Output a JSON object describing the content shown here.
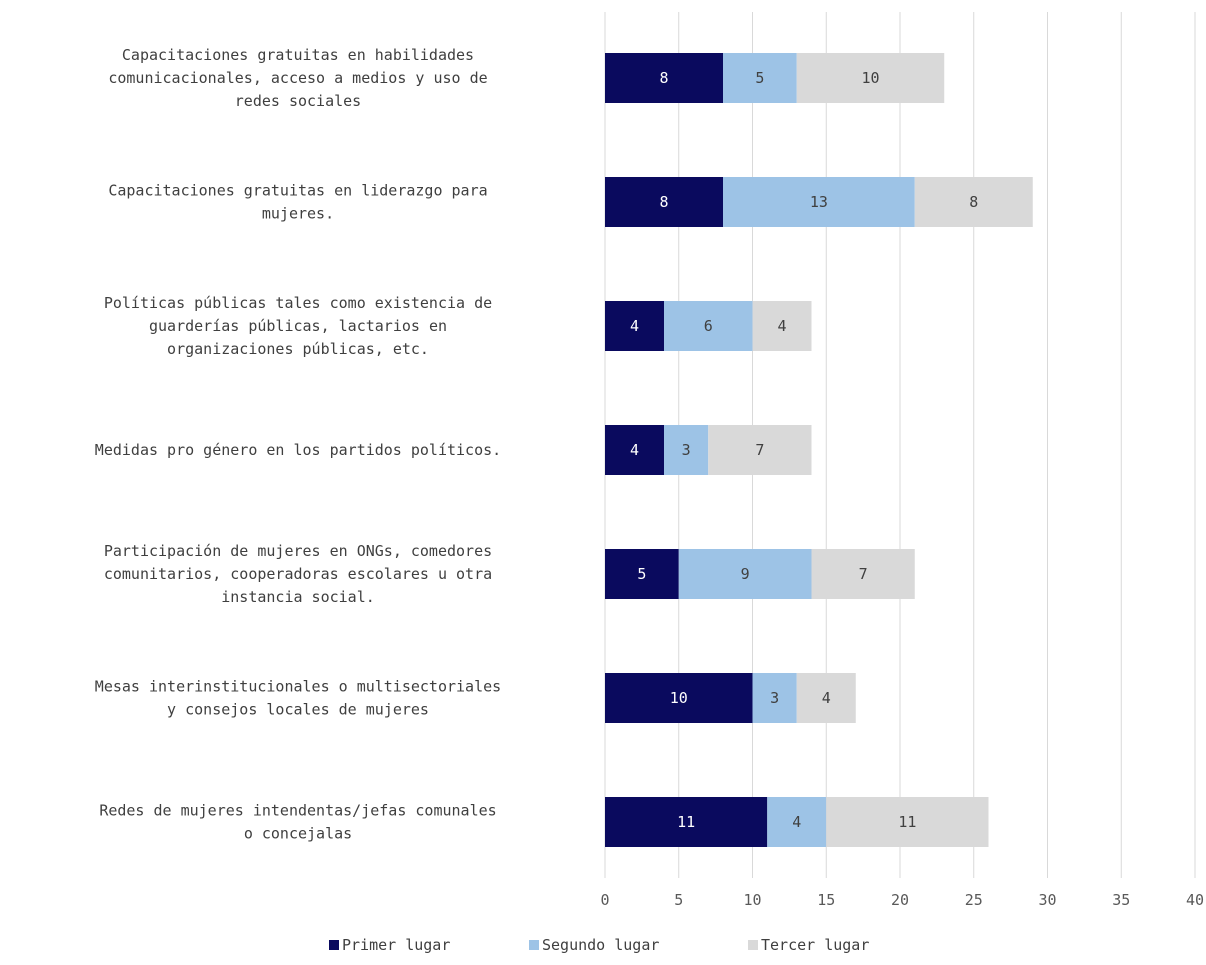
{
  "chart_data": {
    "type": "bar",
    "orientation": "horizontal",
    "stacked": true,
    "categories": [
      [
        "Capacitaciones gratuitas en habilidades",
        "comunicacionales, acceso a medios y uso de",
        "redes sociales"
      ],
      [
        "Capacitaciones gratuitas en liderazgo para",
        "mujeres."
      ],
      [
        "Políticas públicas tales como existencia de",
        "guarderías públicas, lactarios en",
        "organizaciones públicas, etc."
      ],
      [
        "Medidas pro género en los partidos políticos."
      ],
      [
        "Participación de mujeres en ONGs, comedores",
        "comunitarios, cooperadoras escolares u otra",
        "instancia social."
      ],
      [
        "Mesas interinstitucionales o multisectoriales",
        "y consejos locales de mujeres"
      ],
      [
        "Redes de mujeres intendentas/jefas comunales",
        "o concejalas"
      ]
    ],
    "series": [
      {
        "name": "Primer lugar",
        "color": "#0a0a5e",
        "label_color": "#ffffff",
        "values": [
          8,
          8,
          4,
          4,
          5,
          10,
          11
        ]
      },
      {
        "name": "Segundo lugar",
        "color": "#9dc3e6",
        "label_color": "#404040",
        "values": [
          5,
          13,
          6,
          3,
          9,
          3,
          4
        ]
      },
      {
        "name": "Tercer lugar",
        "color": "#d9d9d9",
        "label_color": "#404040",
        "values": [
          10,
          8,
          4,
          7,
          7,
          4,
          11
        ]
      }
    ],
    "xlim": [
      0,
      40
    ],
    "xticks": [
      0,
      5,
      10,
      15,
      20,
      25,
      30,
      35,
      40
    ],
    "grid": true,
    "legend_position": "bottom",
    "title": "",
    "xlabel": "",
    "ylabel": ""
  }
}
